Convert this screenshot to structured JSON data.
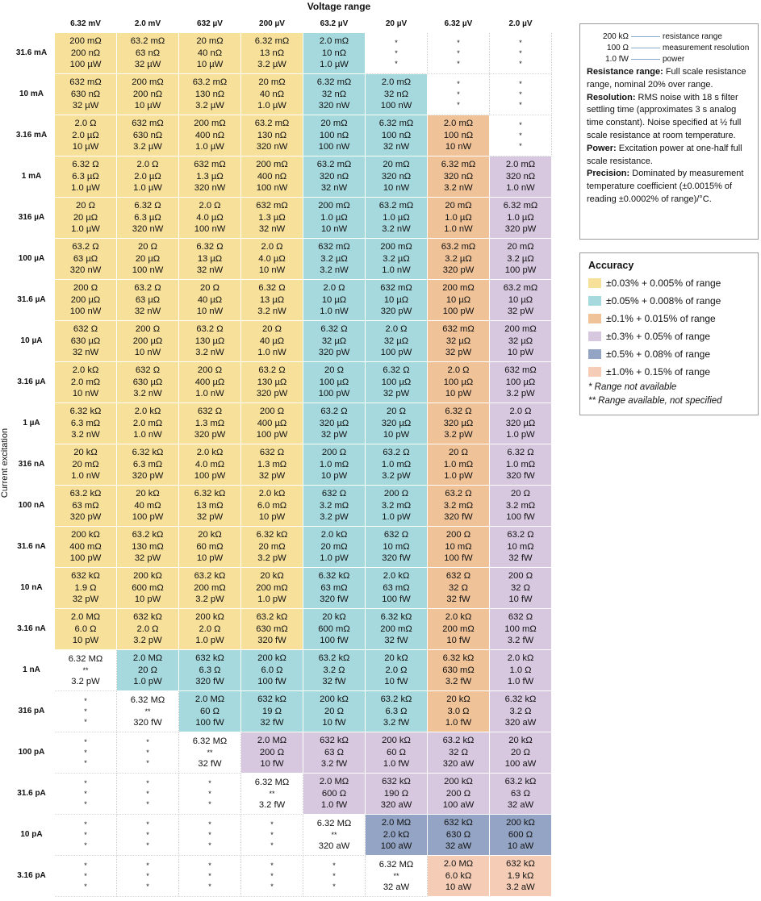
{
  "title_voltage": "Voltage range",
  "title_current": "Current excitation",
  "voltage_ranges": [
    "6.32 mV",
    "2.0 mV",
    "632 µV",
    "200 µV",
    "63.2 µV",
    "20 µV",
    "6.32 µV",
    "2.0 µV"
  ],
  "current_ranges": [
    "31.6 mA",
    "10 mA",
    "3.16 mA",
    "1 mA",
    "316 µA",
    "100 µA",
    "31.6 µA",
    "10 µA",
    "3.16 µA",
    "1 µA",
    "316 nA",
    "100 nA",
    "31.6 nA",
    "10 nA",
    "3.16 nA",
    "1 nA",
    "316 pA",
    "100 pA",
    "31.6 pA",
    "10 pA",
    "3.16 pA"
  ],
  "table_rows": [
    [
      [
        "y",
        "200 mΩ",
        "200 nΩ",
        "100 µW"
      ],
      [
        "y",
        "63.2 mΩ",
        "63 nΩ",
        "32 µW"
      ],
      [
        "y",
        "20 mΩ",
        "40 nΩ",
        "10 µW"
      ],
      [
        "y",
        "6.32 mΩ",
        "13 nΩ",
        "3.2 µW"
      ],
      [
        "c",
        "2.0 mΩ",
        "10 nΩ",
        "1.0 µW"
      ],
      [
        "w",
        "*",
        "*",
        "*"
      ],
      [
        "w",
        "*",
        "*",
        "*"
      ],
      [
        "w",
        "*",
        "*",
        "*"
      ]
    ],
    [
      [
        "y",
        "632 mΩ",
        "630 nΩ",
        "32 µW"
      ],
      [
        "y",
        "200 mΩ",
        "200 nΩ",
        "10 µW"
      ],
      [
        "y",
        "63.2 mΩ",
        "130 nΩ",
        "3.2 µW"
      ],
      [
        "y",
        "20 mΩ",
        "40 nΩ",
        "1.0 µW"
      ],
      [
        "c",
        "6.32 mΩ",
        "32 nΩ",
        "320 nW"
      ],
      [
        "c",
        "2.0 mΩ",
        "32 nΩ",
        "100 nW"
      ],
      [
        "w",
        "*",
        "*",
        "*"
      ],
      [
        "w",
        "*",
        "*",
        "*"
      ]
    ],
    [
      [
        "y",
        "2.0 Ω",
        "2.0 µΩ",
        "10 µW"
      ],
      [
        "y",
        "632 mΩ",
        "630 nΩ",
        "3.2 µW"
      ],
      [
        "y",
        "200 mΩ",
        "400 nΩ",
        "1.0 µW"
      ],
      [
        "y",
        "63.2 mΩ",
        "130 nΩ",
        "320 nW"
      ],
      [
        "c",
        "20 mΩ",
        "100 nΩ",
        "100 nW"
      ],
      [
        "c",
        "6.32 mΩ",
        "100 nΩ",
        "32 nW"
      ],
      [
        "o",
        "2.0 mΩ",
        "100 nΩ",
        "10 nW"
      ],
      [
        "w",
        "*",
        "*",
        "*"
      ]
    ],
    [
      [
        "y",
        "6.32 Ω",
        "6.3 µΩ",
        "1.0 µW"
      ],
      [
        "y",
        "2.0 Ω",
        "2.0 µΩ",
        "1.0 µW"
      ],
      [
        "y",
        "632 mΩ",
        "1.3 µΩ",
        "320 nW"
      ],
      [
        "y",
        "200 mΩ",
        "400 nΩ",
        "100 nW"
      ],
      [
        "c",
        "63.2 mΩ",
        "320 nΩ",
        "32 nW"
      ],
      [
        "c",
        "20 mΩ",
        "320 nΩ",
        "10 nW"
      ],
      [
        "o",
        "6.32 mΩ",
        "320 nΩ",
        "3.2 nW"
      ],
      [
        "p",
        "2.0 mΩ",
        "320 nΩ",
        "1.0 nW"
      ]
    ],
    [
      [
        "y",
        "20 Ω",
        "20 µΩ",
        "1.0 µW"
      ],
      [
        "y",
        "6.32 Ω",
        "6.3 µΩ",
        "320 nW"
      ],
      [
        "y",
        "2.0 Ω",
        "4.0 µΩ",
        "100 nW"
      ],
      [
        "y",
        "632 mΩ",
        "1.3 µΩ",
        "32 nW"
      ],
      [
        "c",
        "200 mΩ",
        "1.0 µΩ",
        "10 nW"
      ],
      [
        "c",
        "63.2 mΩ",
        "1.0 µΩ",
        "3.2 nW"
      ],
      [
        "o",
        "20 mΩ",
        "1.0 µΩ",
        "1.0 nW"
      ],
      [
        "p",
        "6.32 mΩ",
        "1.0 µΩ",
        "320 pW"
      ]
    ],
    [
      [
        "y",
        "63.2 Ω",
        "63 µΩ",
        "320 nW"
      ],
      [
        "y",
        "20 Ω",
        "20 µΩ",
        "100 nW"
      ],
      [
        "y",
        "6.32 Ω",
        "13 µΩ",
        "32 nW"
      ],
      [
        "y",
        "2.0 Ω",
        "4.0 µΩ",
        "10 nW"
      ],
      [
        "c",
        "632 mΩ",
        "3.2 µΩ",
        "3.2 nW"
      ],
      [
        "c",
        "200 mΩ",
        "3.2 µΩ",
        "1.0 nW"
      ],
      [
        "o",
        "63.2 mΩ",
        "3.2 µΩ",
        "320 pW"
      ],
      [
        "p",
        "20 mΩ",
        "3.2 µΩ",
        "100 pW"
      ]
    ],
    [
      [
        "y",
        "200 Ω",
        "200 µΩ",
        "100 nW"
      ],
      [
        "y",
        "63.2 Ω",
        "63 µΩ",
        "32 nW"
      ],
      [
        "y",
        "20 Ω",
        "40 µΩ",
        "10 nW"
      ],
      [
        "y",
        "6.32 Ω",
        "13 µΩ",
        "3.2 nW"
      ],
      [
        "c",
        "2.0 Ω",
        "10 µΩ",
        "1.0 nW"
      ],
      [
        "c",
        "632 mΩ",
        "10 µΩ",
        "320 pW"
      ],
      [
        "o",
        "200 mΩ",
        "10 µΩ",
        "100 pW"
      ],
      [
        "p",
        "63.2 mΩ",
        "10 µΩ",
        "32 pW"
      ]
    ],
    [
      [
        "y",
        "632 Ω",
        "630 µΩ",
        "32 nW"
      ],
      [
        "y",
        "200 Ω",
        "200 µΩ",
        "10 nW"
      ],
      [
        "y",
        "63.2 Ω",
        "130 µΩ",
        "3.2 nW"
      ],
      [
        "y",
        "20 Ω",
        "40 µΩ",
        "1.0 nW"
      ],
      [
        "c",
        "6.32 Ω",
        "32 µΩ",
        "320 pW"
      ],
      [
        "c",
        "2.0 Ω",
        "32 µΩ",
        "100 pW"
      ],
      [
        "o",
        "632 mΩ",
        "32 µΩ",
        "32 pW"
      ],
      [
        "p",
        "200 mΩ",
        "32 µΩ",
        "10 pW"
      ]
    ],
    [
      [
        "y",
        "2.0 kΩ",
        "2.0 mΩ",
        "10 nW"
      ],
      [
        "y",
        "632 Ω",
        "630 µΩ",
        "3.2 nW"
      ],
      [
        "y",
        "200 Ω",
        "400 µΩ",
        "1.0 nW"
      ],
      [
        "y",
        "63.2 Ω",
        "130 µΩ",
        "320 pW"
      ],
      [
        "c",
        "20 Ω",
        "100 µΩ",
        "100 pW"
      ],
      [
        "c",
        "6.32 Ω",
        "100 µΩ",
        "32 pW"
      ],
      [
        "o",
        "2.0 Ω",
        "100 µΩ",
        "10 pW"
      ],
      [
        "p",
        "632 mΩ",
        "100 µΩ",
        "3.2 pW"
      ]
    ],
    [
      [
        "y",
        "6.32 kΩ",
        "6.3 mΩ",
        "3.2 nW"
      ],
      [
        "y",
        "2.0 kΩ",
        "2.0 mΩ",
        "1.0 nW"
      ],
      [
        "y",
        "632 Ω",
        "1.3 mΩ",
        "320 pW"
      ],
      [
        "y",
        "200 Ω",
        "400 µΩ",
        "100 pW"
      ],
      [
        "c",
        "63.2 Ω",
        "320 µΩ",
        "32 pW"
      ],
      [
        "c",
        "20 Ω",
        "320 µΩ",
        "10 pW"
      ],
      [
        "o",
        "6.32 Ω",
        "320 µΩ",
        "3.2 pW"
      ],
      [
        "p",
        "2.0 Ω",
        "320 µΩ",
        "1.0 pW"
      ]
    ],
    [
      [
        "y",
        "20 kΩ",
        "20 mΩ",
        "1.0 nW"
      ],
      [
        "y",
        "6.32 kΩ",
        "6.3 mΩ",
        "320 pW"
      ],
      [
        "y",
        "2.0 kΩ",
        "4.0 mΩ",
        "100 pW"
      ],
      [
        "y",
        "632 Ω",
        "1.3 mΩ",
        "32 pW"
      ],
      [
        "c",
        "200 Ω",
        "1.0 mΩ",
        "10 pW"
      ],
      [
        "c",
        "63.2 Ω",
        "1.0 mΩ",
        "3.2 pW"
      ],
      [
        "o",
        "20 Ω",
        "1.0 mΩ",
        "1.0 pW"
      ],
      [
        "p",
        "6.32 Ω",
        "1.0 mΩ",
        "320 fW"
      ]
    ],
    [
      [
        "y",
        "63.2 kΩ",
        "63 mΩ",
        "320 pW"
      ],
      [
        "y",
        "20 kΩ",
        "40 mΩ",
        "100 pW"
      ],
      [
        "y",
        "6.32 kΩ",
        "13 mΩ",
        "32 pW"
      ],
      [
        "y",
        "2.0 kΩ",
        "6.0 mΩ",
        "10 pW"
      ],
      [
        "c",
        "632 Ω",
        "3.2 mΩ",
        "3.2 pW"
      ],
      [
        "c",
        "200 Ω",
        "3.2 mΩ",
        "1.0 pW"
      ],
      [
        "o",
        "63.2 Ω",
        "3.2 mΩ",
        "320 fW"
      ],
      [
        "p",
        "20 Ω",
        "3.2 mΩ",
        "100 fW"
      ]
    ],
    [
      [
        "y",
        "200 kΩ",
        "400 mΩ",
        "100 pW"
      ],
      [
        "y",
        "63.2 kΩ",
        "130 mΩ",
        "32 pW"
      ],
      [
        "y",
        "20 kΩ",
        "60 mΩ",
        "10 pW"
      ],
      [
        "y",
        "6.32 kΩ",
        "20 mΩ",
        "3.2 pW"
      ],
      [
        "c",
        "2.0 kΩ",
        "20 mΩ",
        "1.0 pW"
      ],
      [
        "c",
        "632 Ω",
        "10 mΩ",
        "320 fW"
      ],
      [
        "o",
        "200 Ω",
        "10 mΩ",
        "100 fW"
      ],
      [
        "p",
        "63.2 Ω",
        "10 mΩ",
        "32 fW"
      ]
    ],
    [
      [
        "y",
        "632 kΩ",
        "1.9 Ω",
        "32 pW"
      ],
      [
        "y",
        "200 kΩ",
        "600 mΩ",
        "10 pW"
      ],
      [
        "y",
        "63.2 kΩ",
        "200 mΩ",
        "3.2 pW"
      ],
      [
        "y",
        "20 kΩ",
        "200 mΩ",
        "1.0 pW"
      ],
      [
        "c",
        "6.32 kΩ",
        "63 mΩ",
        "320 fW"
      ],
      [
        "c",
        "2.0 kΩ",
        "63 mΩ",
        "100 fW"
      ],
      [
        "o",
        "632 Ω",
        "32 Ω",
        "32 fW"
      ],
      [
        "p",
        "200 Ω",
        "32 Ω",
        "10 fW"
      ]
    ],
    [
      [
        "y",
        "2.0 MΩ",
        "6.0 Ω",
        "10 pW"
      ],
      [
        "y",
        "632 kΩ",
        "2.0 Ω",
        "3.2 pW"
      ],
      [
        "y",
        "200 kΩ",
        "2.0 Ω",
        "1.0 pW"
      ],
      [
        "y",
        "63.2 kΩ",
        "630 mΩ",
        "320 fW"
      ],
      [
        "c",
        "20 kΩ",
        "600 mΩ",
        "100 fW"
      ],
      [
        "c",
        "6.32 kΩ",
        "200 mΩ",
        "32 fW"
      ],
      [
        "o",
        "2.0 kΩ",
        "200 mΩ",
        "10 fW"
      ],
      [
        "p",
        "632 Ω",
        "100 mΩ",
        "3.2 fW"
      ]
    ],
    [
      [
        "w",
        "6.32 MΩ",
        "**",
        "3.2 pW"
      ],
      [
        "c",
        "2.0 MΩ",
        "20 Ω",
        "1.0 pW"
      ],
      [
        "c",
        "632 kΩ",
        "6.3 Ω",
        "320 fW"
      ],
      [
        "c",
        "200 kΩ",
        "6.0 Ω",
        "100 fW"
      ],
      [
        "c",
        "63.2 kΩ",
        "3.2 Ω",
        "32 fW"
      ],
      [
        "c",
        "20 kΩ",
        "2.0 Ω",
        "10 fW"
      ],
      [
        "o",
        "6.32 kΩ",
        "630 mΩ",
        "3.2 fW"
      ],
      [
        "p",
        "2.0 kΩ",
        "1.0 Ω",
        "1.0 fW"
      ]
    ],
    [
      [
        "w",
        "*",
        "*",
        "*"
      ],
      [
        "w",
        "6.32 MΩ",
        "**",
        "320 fW"
      ],
      [
        "c",
        "2.0 MΩ",
        "60 Ω",
        "100 fW"
      ],
      [
        "c",
        "632 kΩ",
        "19 Ω",
        "32 fW"
      ],
      [
        "c",
        "200 kΩ",
        "20 Ω",
        "10 fW"
      ],
      [
        "c",
        "63.2 kΩ",
        "6.3 Ω",
        "3.2 fW"
      ],
      [
        "o",
        "20 kΩ",
        "3.0 Ω",
        "1.0 fW"
      ],
      [
        "p",
        "6.32 kΩ",
        "3.2 Ω",
        "320 aW"
      ]
    ],
    [
      [
        "w",
        "*",
        "*",
        "*"
      ],
      [
        "w",
        "*",
        "*",
        "*"
      ],
      [
        "w",
        "6.32 MΩ",
        "**",
        "32 fW"
      ],
      [
        "p",
        "2.0 MΩ",
        "200 Ω",
        "10 fW"
      ],
      [
        "p",
        "632 kΩ",
        "63 Ω",
        "3.2 fW"
      ],
      [
        "p",
        "200 kΩ",
        "60 Ω",
        "1.0 fW"
      ],
      [
        "p",
        "63.2 kΩ",
        "32 Ω",
        "320 aW"
      ],
      [
        "p",
        "20 kΩ",
        "20 Ω",
        "100 aW"
      ]
    ],
    [
      [
        "w",
        "*",
        "*",
        "*"
      ],
      [
        "w",
        "*",
        "*",
        "*"
      ],
      [
        "w",
        "*",
        "*",
        "*"
      ],
      [
        "w",
        "6.32 MΩ",
        "**",
        "3.2 fW"
      ],
      [
        "p",
        "2.0 MΩ",
        "600 Ω",
        "1.0 fW"
      ],
      [
        "p",
        "632 kΩ",
        "190 Ω",
        "320 aW"
      ],
      [
        "p",
        "200 kΩ",
        "200 Ω",
        "100 aW"
      ],
      [
        "p",
        "63.2 kΩ",
        "63 Ω",
        "32 aW"
      ]
    ],
    [
      [
        "w",
        "*",
        "*",
        "*"
      ],
      [
        "w",
        "*",
        "*",
        "*"
      ],
      [
        "w",
        "*",
        "*",
        "*"
      ],
      [
        "w",
        "*",
        "*",
        "*"
      ],
      [
        "w",
        "6.32 MΩ",
        "**",
        "320 aW"
      ],
      [
        "b",
        "2.0 MΩ",
        "2.0 kΩ",
        "100 aW"
      ],
      [
        "b",
        "632 kΩ",
        "630 Ω",
        "32 aW"
      ],
      [
        "b",
        "200 kΩ",
        "600 Ω",
        "10 aW"
      ]
    ],
    [
      [
        "w",
        "*",
        "*",
        "*"
      ],
      [
        "w",
        "*",
        "*",
        "*"
      ],
      [
        "w",
        "*",
        "*",
        "*"
      ],
      [
        "w",
        "*",
        "*",
        "*"
      ],
      [
        "w",
        "*",
        "*",
        "*"
      ],
      [
        "w",
        "6.32 MΩ",
        "**",
        "32 aW"
      ],
      [
        "s",
        "2.0 MΩ",
        "6.0 kΩ",
        "10 aW"
      ],
      [
        "s",
        "632 kΩ",
        "1.9 kΩ",
        "3.2 aW"
      ]
    ]
  ],
  "key_legend": {
    "items": [
      {
        "value": "200 kΩ",
        "label": "resistance range"
      },
      {
        "value": "100 Ω",
        "label": "measurement resolution"
      },
      {
        "value": "1.0 fW",
        "label": "power"
      }
    ],
    "definitions": [
      {
        "term": "Resistance range:",
        "text": " Full scale resistance range, nominal 20% over range."
      },
      {
        "term": "Resolution:",
        "text": " RMS noise with 18 s filter settling time (approximates 3 s analog time constant). Noise specified at ½ full scale resistance at room temperature."
      },
      {
        "term": "Power:",
        "text": " Excitation power at one-half full scale resistance."
      },
      {
        "term": "Precision:",
        "text": " Dominated by measurement temperature coefficient (±0.0015% of reading ±0.0002% of range)/°C."
      }
    ]
  },
  "accuracy_legend": {
    "title": "Accuracy",
    "items": [
      {
        "color": "#f7e09a",
        "label": "±0.03% + 0.005% of range"
      },
      {
        "color": "#a6d9de",
        "label": "±0.05% + 0.008% of range"
      },
      {
        "color": "#f0c298",
        "label": "±0.1% + 0.015% of range"
      },
      {
        "color": "#d7c8e0",
        "label": "±0.3% + 0.05% of range"
      },
      {
        "color": "#93a4c4",
        "label": "±0.5% + 0.08% of range"
      },
      {
        "color": "#f5cdb7",
        "label": "±1.0% + 0.15% of range"
      }
    ],
    "notes": [
      "*  Range not available",
      "** Range available, not specified"
    ]
  }
}
